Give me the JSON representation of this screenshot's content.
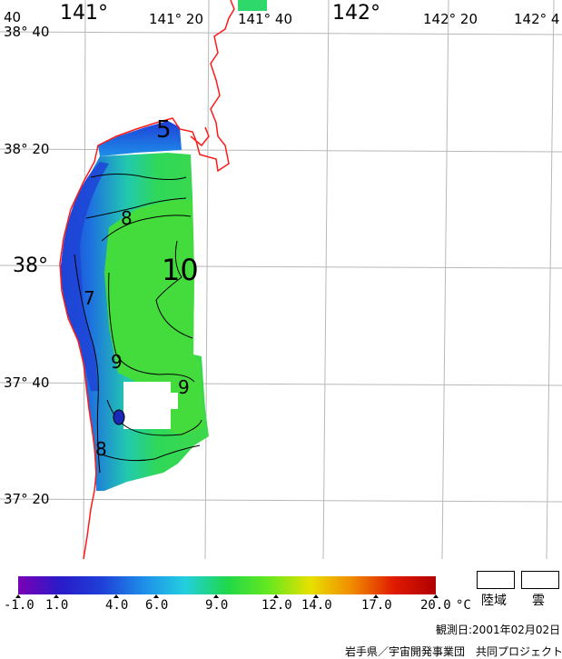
{
  "map": {
    "top_longitude_labels": [
      "40",
      "141°",
      "141° 20",
      "141° 40",
      "142°",
      "142° 20",
      "142° 4"
    ],
    "left_latitude_labels": [
      "38° 40",
      "38° 20",
      "38°",
      "37° 40",
      "37° 20"
    ],
    "contour_labels": [
      "5",
      "8",
      "10",
      "7",
      "9",
      "9",
      "8"
    ]
  },
  "colorbar": {
    "unit": "°C",
    "tick_labels": [
      "-1.0",
      "1.0",
      "4.0",
      "6.0",
      "9.0",
      "12.0",
      "14.0",
      "17.0",
      "20.0"
    ],
    "colors": [
      "#7a00b4",
      "#2a1ac8",
      "#1f3fd8",
      "#1e8ee8",
      "#22cfe0",
      "#1fd84a",
      "#66e81f",
      "#e8e000",
      "#f08a00",
      "#e01a00",
      "#b00000"
    ]
  },
  "legend_boxes": {
    "land": "陸域",
    "cloud": "雲"
  },
  "footer": {
    "observation_date": "観測日:2001年02月02日",
    "credit": "岩手県／宇宙開発事業団　共同プロジェクト"
  }
}
